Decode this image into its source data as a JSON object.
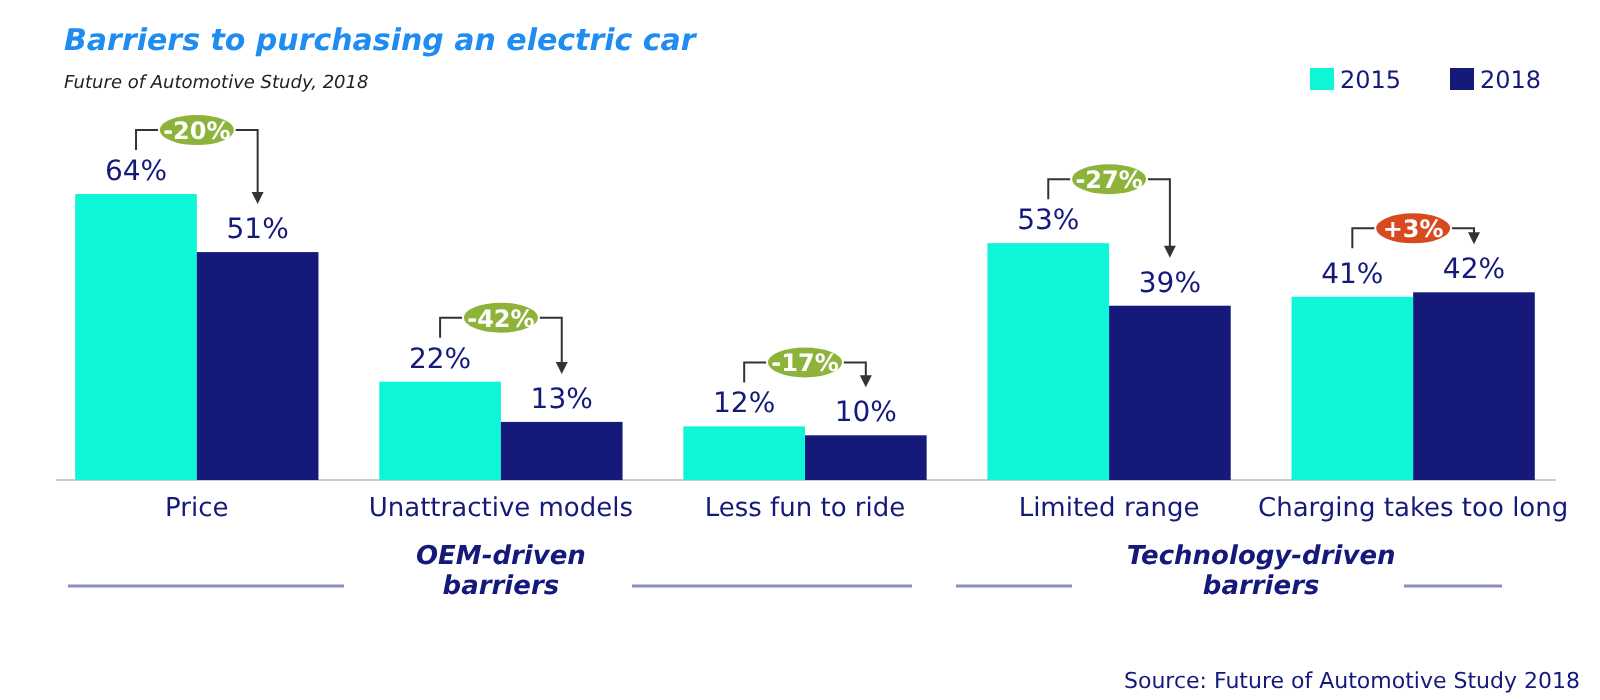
{
  "chart_data": {
    "type": "bar",
    "title": "Barriers to purchasing an electric car",
    "subtitle": "Future of Automotive Study, 2018",
    "categories": [
      "Price",
      "Unattractive models",
      "Less fun to ride",
      "Limited range",
      "Charging takes too long"
    ],
    "series": [
      {
        "name": "2015",
        "color": "#0ff5d8",
        "values": [
          64,
          22,
          12,
          53,
          41
        ],
        "value_labels": [
          "64%",
          "22%",
          "12%",
          "53%",
          "41%"
        ]
      },
      {
        "name": "2018",
        "color": "#14197a",
        "values": [
          51,
          13,
          10,
          39,
          42
        ],
        "value_labels": [
          "51%",
          "13%",
          "10%",
          "39%",
          "42%"
        ]
      }
    ],
    "legend": "top right",
    "annotations": [
      "-20%",
      "-42%",
      "-17%",
      "-27%",
      "+3%",
      "OEM-driven barriers",
      "Technology-driven barriers",
      "Source: Future of Automotive Study 2018"
    ]
  }
}
